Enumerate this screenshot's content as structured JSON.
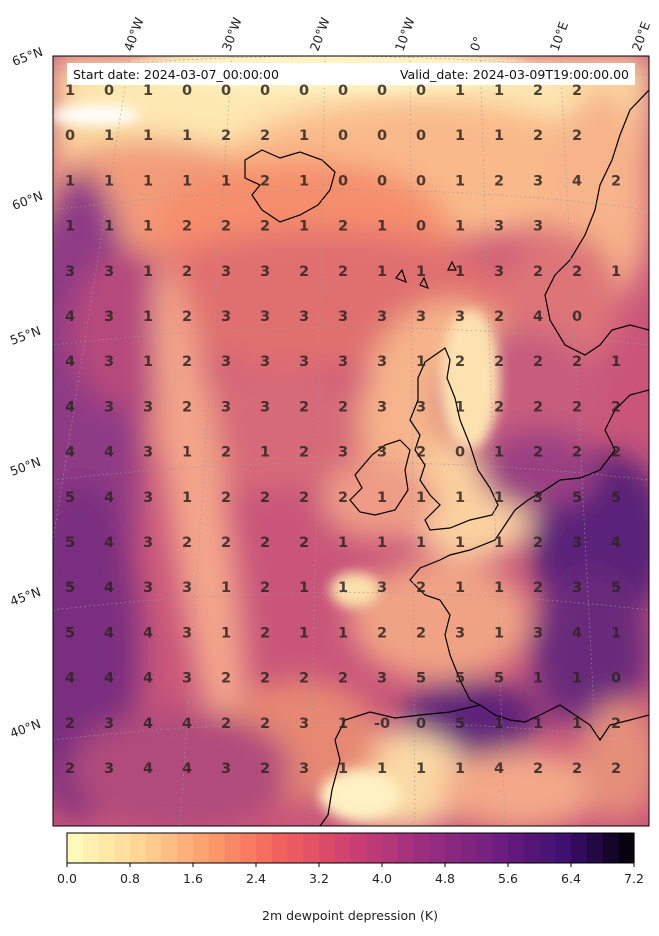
{
  "header": {
    "start_date": "Start date: 2024-03-07_00:00:00",
    "valid_date": "Valid_date: 2024-03-09T19:00:00.00"
  },
  "lon_labels": [
    "40°W",
    "30°W",
    "20°W",
    "10°W",
    "0°",
    "10°E",
    "20°E"
  ],
  "lat_labels": [
    "65°N",
    "60°N",
    "55°N",
    "50°N",
    "45°N",
    "40°N"
  ],
  "grid_values": [
    [
      "1",
      "0",
      "1",
      "0",
      "0",
      "0",
      "0",
      "0",
      "0",
      "0",
      "1",
      "1",
      "2",
      "2",
      ""
    ],
    [
      "0",
      "1",
      "1",
      "1",
      "2",
      "2",
      "1",
      "0",
      "0",
      "0",
      "1",
      "1",
      "2",
      "2",
      ""
    ],
    [
      "1",
      "1",
      "1",
      "1",
      "1",
      "2",
      "1",
      "0",
      "0",
      "0",
      "1",
      "2",
      "3",
      "4",
      "2"
    ],
    [
      "1",
      "1",
      "1",
      "2",
      "2",
      "2",
      "1",
      "2",
      "1",
      "0",
      "1",
      "3",
      "3",
      "",
      ""
    ],
    [
      "3",
      "3",
      "1",
      "2",
      "3",
      "3",
      "2",
      "2",
      "1",
      "1",
      "1",
      "3",
      "2",
      "2",
      "1"
    ],
    [
      "4",
      "3",
      "1",
      "2",
      "3",
      "3",
      "3",
      "3",
      "3",
      "3",
      "3",
      "2",
      "4",
      "0",
      ""
    ],
    [
      "4",
      "3",
      "1",
      "2",
      "3",
      "3",
      "3",
      "3",
      "3",
      "1",
      "2",
      "2",
      "2",
      "2",
      "1"
    ],
    [
      "4",
      "3",
      "3",
      "2",
      "3",
      "3",
      "2",
      "2",
      "3",
      "3",
      "1",
      "2",
      "2",
      "2",
      "2"
    ],
    [
      "4",
      "4",
      "3",
      "1",
      "2",
      "1",
      "2",
      "3",
      "3",
      "2",
      "0",
      "1",
      "2",
      "2",
      "2"
    ],
    [
      "5",
      "4",
      "3",
      "1",
      "2",
      "2",
      "2",
      "2",
      "1",
      "1",
      "1",
      "1",
      "3",
      "5",
      "5"
    ],
    [
      "5",
      "4",
      "3",
      "2",
      "2",
      "2",
      "2",
      "1",
      "1",
      "1",
      "1",
      "1",
      "2",
      "3",
      "4"
    ],
    [
      "5",
      "4",
      "3",
      "3",
      "1",
      "2",
      "1",
      "1",
      "3",
      "2",
      "1",
      "1",
      "2",
      "3",
      "5"
    ],
    [
      "5",
      "4",
      "4",
      "3",
      "1",
      "2",
      "1",
      "1",
      "2",
      "2",
      "3",
      "1",
      "3",
      "4",
      "1"
    ],
    [
      "4",
      "4",
      "4",
      "3",
      "2",
      "2",
      "2",
      "2",
      "3",
      "5",
      "5",
      "5",
      "1",
      "1",
      "0"
    ],
    [
      "2",
      "3",
      "4",
      "4",
      "2",
      "2",
      "3",
      "1",
      "-0",
      "0",
      "5",
      "1",
      "1",
      "1",
      "2"
    ],
    [
      "2",
      "3",
      "4",
      "4",
      "3",
      "2",
      "3",
      "1",
      "1",
      "1",
      "1",
      "4",
      "2",
      "2",
      "2"
    ]
  ],
  "colorbar": {
    "ticks": [
      "0.0",
      "0.8",
      "1.6",
      "2.4",
      "3.2",
      "4.0",
      "4.8",
      "5.6",
      "6.4",
      "7.2"
    ],
    "min": 0,
    "max": 7.2,
    "levels": 36,
    "colormap": "magma_r",
    "label": "2m dewpoint depression (K)"
  }
}
